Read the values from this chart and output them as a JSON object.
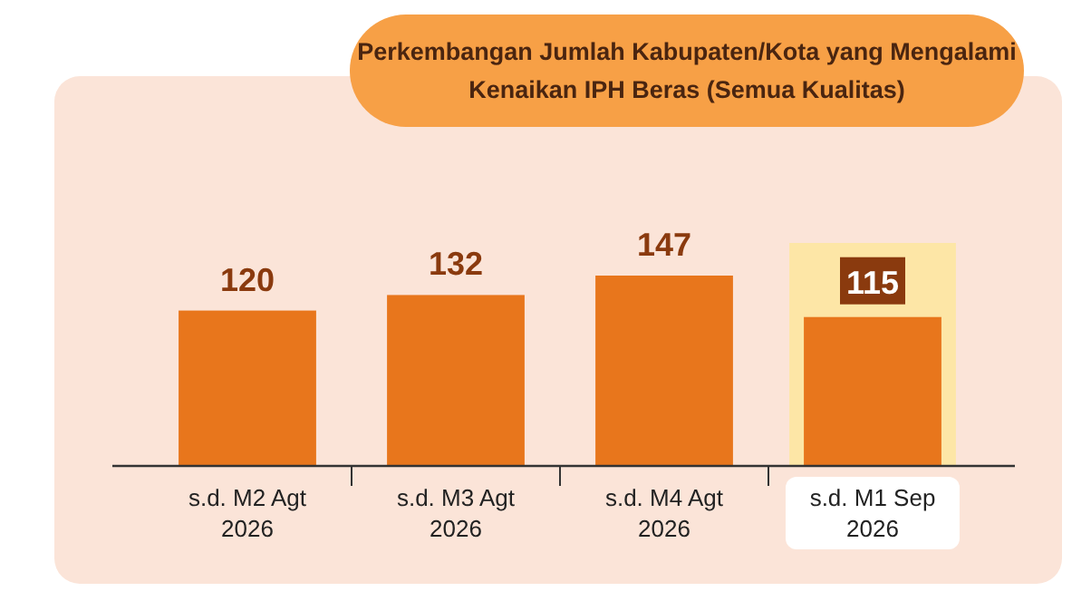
{
  "chart_data": {
    "type": "bar",
    "title": "Perkembangan Jumlah Kabupaten/Kota yang Mengalami Kenaikan IPH Beras (Semua Kualitas)",
    "categories": [
      "s.d. M2 Agt 2026",
      "s.d. M3 Agt 2026",
      "s.d. M4 Agt 2026",
      "s.d. M1 Sep 2026"
    ],
    "values": [
      120,
      132,
      147,
      115
    ],
    "color": "#e8761c",
    "data_labels": true,
    "bands": [
      {
        "axis": "x",
        "from": "s.d. M1 Sep 2026",
        "to": "s.d. M1 Sep 2026",
        "color": "#fde6a6"
      }
    ]
  }
}
